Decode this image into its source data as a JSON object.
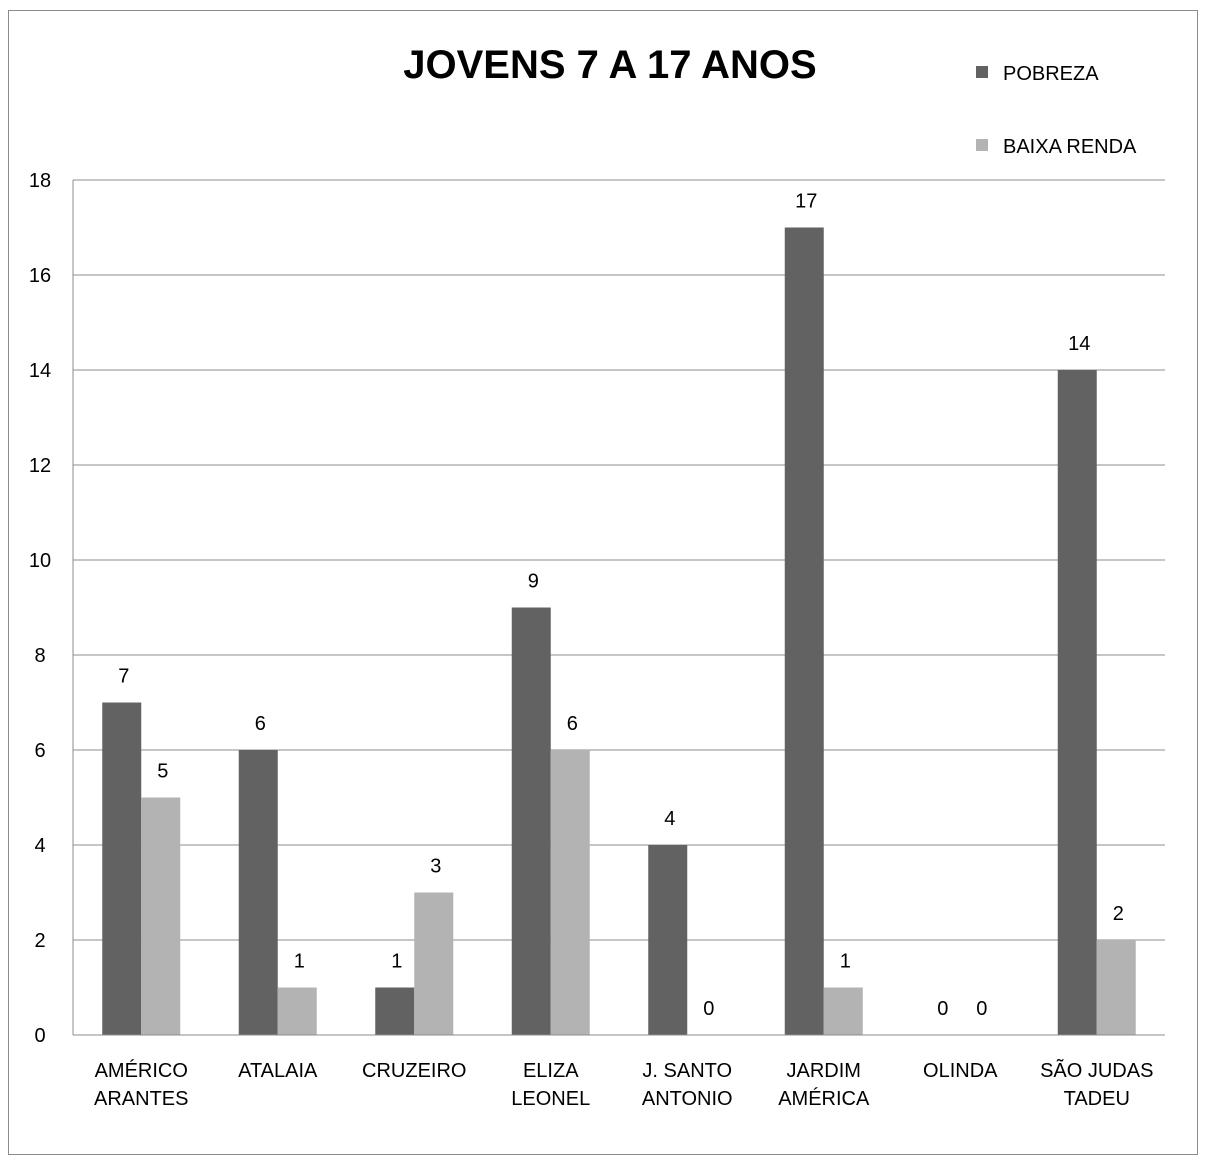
{
  "chart_data": {
    "type": "bar",
    "title": "JOVENS 7 A 17 ANOS",
    "xlabel": "",
    "ylabel": "",
    "categories": [
      [
        "AMÉRICO",
        "ARANTES"
      ],
      [
        "ATALAIA"
      ],
      [
        "CRUZEIRO"
      ],
      [
        "ELIZA",
        "LEONEL"
      ],
      [
        "J. SANTO",
        "ANTONIO"
      ],
      [
        "JARDIM",
        "AMÉRICA"
      ],
      [
        "OLINDA"
      ],
      [
        "SÃO JUDAS",
        "TADEU"
      ]
    ],
    "series": [
      {
        "name": "POBREZA",
        "color": "#626262",
        "values": [
          7,
          6,
          1,
          9,
          4,
          17,
          0,
          14
        ]
      },
      {
        "name": "BAIXA RENDA",
        "color": "#b3b3b3",
        "values": [
          5,
          1,
          3,
          6,
          0,
          1,
          0,
          2
        ]
      }
    ],
    "ylim": [
      0,
      18
    ],
    "yticks": [
      0,
      2,
      4,
      6,
      8,
      10,
      12,
      14,
      16,
      18
    ],
    "grid": true,
    "legend_position": "top-right",
    "data_labels": true
  }
}
